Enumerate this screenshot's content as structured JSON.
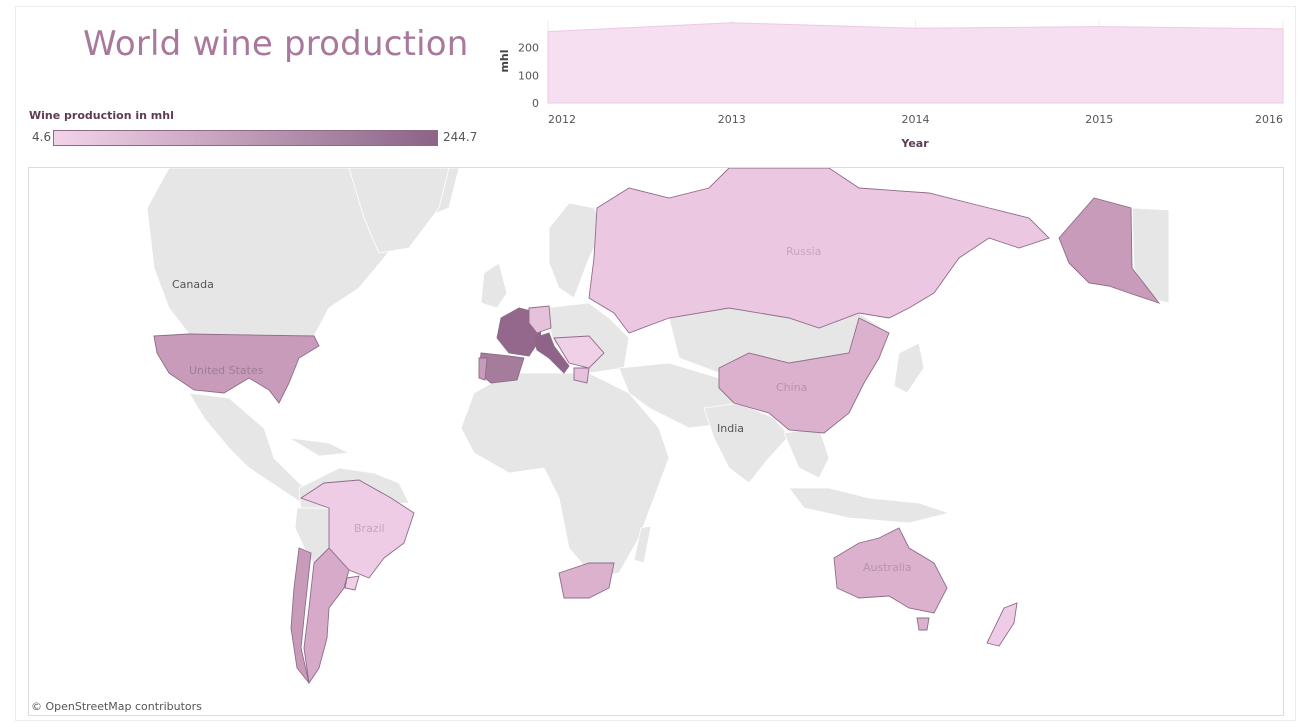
{
  "title": "World wine production",
  "legend": {
    "title": "Wine production in mhl",
    "min": "4.6",
    "max": "244.7",
    "min_color": "#f3d3ea",
    "max_color": "#8b6486"
  },
  "chart_data": {
    "type": "area",
    "x": [
      2012,
      2013,
      2014,
      2015,
      2016
    ],
    "x_ticks": [
      "2012",
      "2013",
      "2014",
      "2015",
      "2016"
    ],
    "values": [
      258,
      290,
      270,
      276,
      268
    ],
    "xlabel": "Year",
    "ylabel": "mhl",
    "y_ticks": [
      "0",
      "100",
      "200"
    ],
    "ylim": [
      0,
      300
    ],
    "grid": true,
    "color": "#f5dff0"
  },
  "map": {
    "credit": "© OpenStreetMap contributors",
    "labels": {
      "canada": "Canada",
      "us": "United States",
      "russia": "Russia",
      "china": "China",
      "india": "India",
      "brazil": "Brazil",
      "australia": "Australia"
    },
    "land_color": "#e6e6e6",
    "border_color": "#ffffff"
  }
}
